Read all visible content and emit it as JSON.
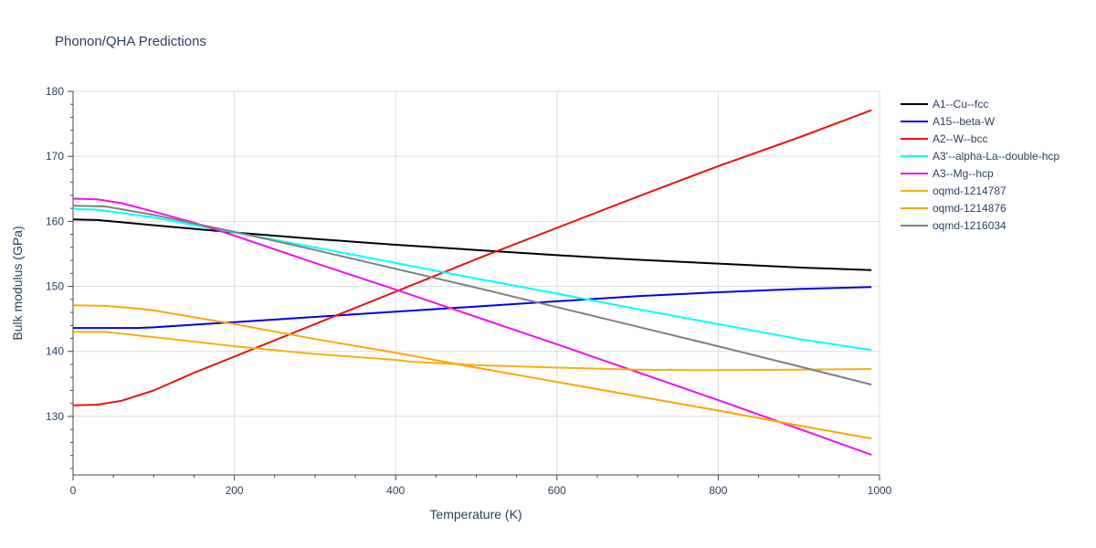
{
  "chart_data": {
    "type": "line",
    "title": "Phonon/QHA Predictions",
    "xlabel": "Temperature (K)",
    "ylabel": "Bulk modulus (GPa)",
    "xlim": [
      0,
      1000
    ],
    "ylim": [
      121,
      180
    ],
    "x_ticks": [
      0,
      200,
      400,
      600,
      800,
      1000
    ],
    "y_ticks": [
      130,
      140,
      150,
      160,
      170,
      180
    ],
    "grid": true,
    "legend_position": "right",
    "series": [
      {
        "name": "A1--Cu--fcc",
        "color": "#000000",
        "points": [
          [
            0,
            160.3
          ],
          [
            30,
            160.2
          ],
          [
            100,
            159.4
          ],
          [
            200,
            158.3
          ],
          [
            300,
            157.3
          ],
          [
            400,
            156.4
          ],
          [
            500,
            155.6
          ],
          [
            600,
            154.8
          ],
          [
            700,
            154.1
          ],
          [
            800,
            153.5
          ],
          [
            900,
            152.9
          ],
          [
            990,
            152.5
          ]
        ]
      },
      {
        "name": "A15--beta-W",
        "color": "#0000ee",
        "points": [
          [
            0,
            143.6
          ],
          [
            40,
            143.6
          ],
          [
            80,
            143.6
          ],
          [
            100,
            143.7
          ],
          [
            200,
            144.5
          ],
          [
            300,
            145.3
          ],
          [
            400,
            146.1
          ],
          [
            500,
            146.9
          ],
          [
            600,
            147.7
          ],
          [
            700,
            148.5
          ],
          [
            800,
            149.1
          ],
          [
            900,
            149.6
          ],
          [
            990,
            149.9
          ]
        ]
      },
      {
        "name": "A2--W--bcc",
        "color": "#ee1111",
        "points": [
          [
            0,
            131.7
          ],
          [
            30,
            131.8
          ],
          [
            60,
            132.4
          ],
          [
            100,
            134.0
          ],
          [
            150,
            136.7
          ],
          [
            200,
            139.2
          ],
          [
            300,
            144.2
          ],
          [
            400,
            149.2
          ],
          [
            500,
            154.2
          ],
          [
            600,
            159.0
          ],
          [
            700,
            163.8
          ],
          [
            800,
            168.5
          ],
          [
            900,
            172.9
          ],
          [
            990,
            177.1
          ]
        ]
      },
      {
        "name": "A3'--alpha-La--double-hcp",
        "color": "#00ffff",
        "points": [
          [
            0,
            161.9
          ],
          [
            30,
            161.8
          ],
          [
            100,
            160.6
          ],
          [
            200,
            158.3
          ],
          [
            300,
            156.0
          ],
          [
            400,
            153.6
          ],
          [
            500,
            151.2
          ],
          [
            600,
            148.9
          ],
          [
            700,
            146.5
          ],
          [
            800,
            144.2
          ],
          [
            900,
            141.9
          ],
          [
            990,
            140.2
          ]
        ]
      },
      {
        "name": "A3--Mg--hcp",
        "color": "#ee11ee",
        "points": [
          [
            0,
            163.5
          ],
          [
            30,
            163.4
          ],
          [
            60,
            162.8
          ],
          [
            100,
            161.5
          ],
          [
            150,
            159.8
          ],
          [
            200,
            157.8
          ],
          [
            300,
            153.6
          ],
          [
            400,
            149.5
          ],
          [
            500,
            145.3
          ],
          [
            600,
            141.1
          ],
          [
            700,
            136.8
          ],
          [
            800,
            132.5
          ],
          [
            900,
            128.1
          ],
          [
            990,
            124.1
          ]
        ]
      },
      {
        "name": "oqmd-1214787",
        "color": "#f5b010",
        "points": [
          [
            0,
            143.0
          ],
          [
            40,
            143.0
          ],
          [
            100,
            142.2
          ],
          [
            200,
            140.8
          ],
          [
            300,
            139.6
          ],
          [
            400,
            138.7
          ],
          [
            420,
            138.4
          ],
          [
            500,
            137.9
          ],
          [
            600,
            137.5
          ],
          [
            700,
            137.2
          ],
          [
            780,
            137.1
          ],
          [
            900,
            137.2
          ],
          [
            990,
            137.3
          ]
        ]
      },
      {
        "name": "oqmd-1214876",
        "color": "#ffa500",
        "points": [
          [
            0,
            147.1
          ],
          [
            40,
            147.0
          ],
          [
            80,
            146.6
          ],
          [
            100,
            146.3
          ],
          [
            200,
            144.2
          ],
          [
            300,
            141.9
          ],
          [
            400,
            139.8
          ],
          [
            500,
            137.5
          ],
          [
            600,
            135.3
          ],
          [
            700,
            133.1
          ],
          [
            800,
            130.9
          ],
          [
            900,
            128.6
          ],
          [
            990,
            126.6
          ]
        ]
      },
      {
        "name": "oqmd-1216034",
        "color": "#808080",
        "points": [
          [
            0,
            162.4
          ],
          [
            40,
            162.3
          ],
          [
            100,
            161.0
          ],
          [
            200,
            158.4
          ],
          [
            300,
            155.6
          ],
          [
            400,
            152.7
          ],
          [
            500,
            149.8
          ],
          [
            600,
            146.8
          ],
          [
            700,
            143.8
          ],
          [
            800,
            140.8
          ],
          [
            900,
            137.7
          ],
          [
            990,
            134.9
          ]
        ]
      }
    ]
  }
}
